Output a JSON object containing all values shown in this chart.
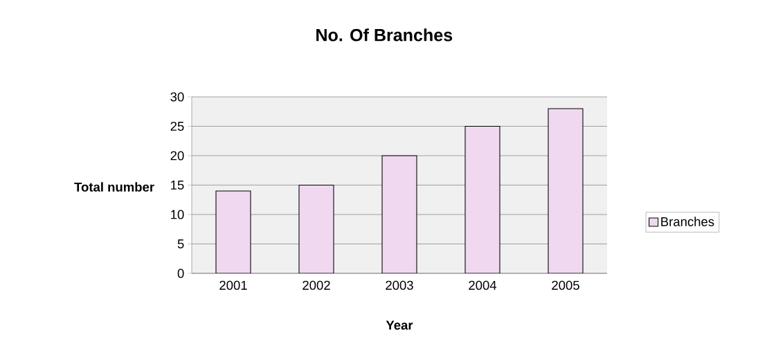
{
  "chart_data": {
    "type": "bar",
    "title": "No. Of Branches",
    "xlabel": "Year",
    "ylabel": "Total number",
    "categories": [
      "2001",
      "2002",
      "2003",
      "2004",
      "2005"
    ],
    "series": [
      {
        "name": "Branches",
        "color": "#f0d8f0",
        "values": [
          14,
          15,
          20,
          25,
          28
        ]
      }
    ],
    "ylim": [
      0,
      30
    ],
    "yticks": [
      0,
      5,
      10,
      15,
      20,
      25,
      30
    ],
    "grid": "y",
    "legend": "right"
  }
}
